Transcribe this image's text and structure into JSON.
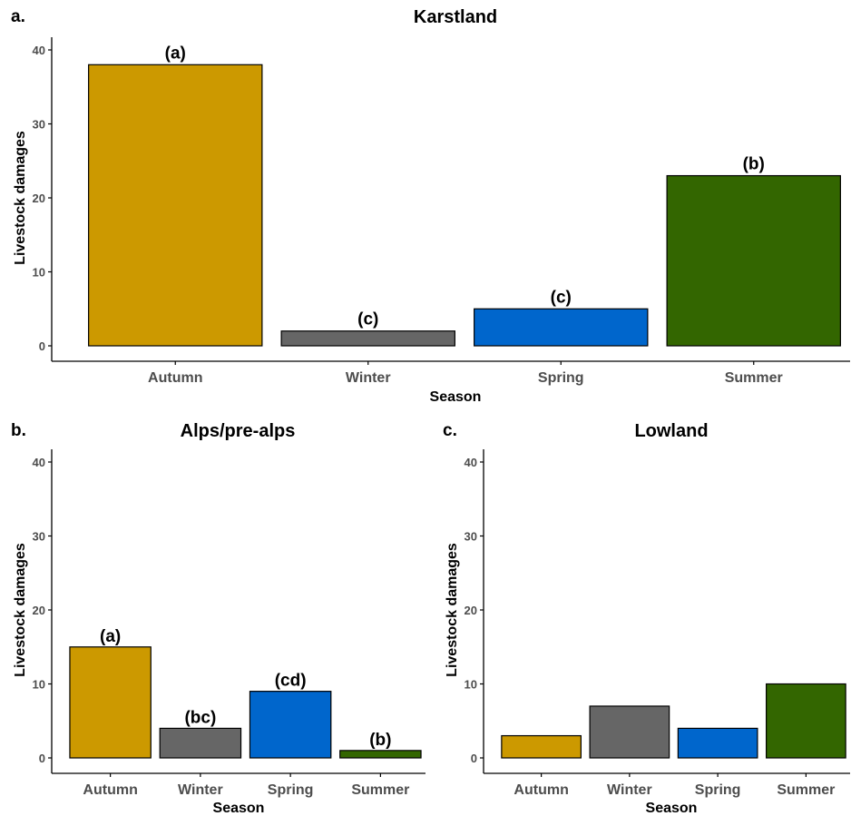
{
  "colors": {
    "Autumn": "#CC9900",
    "Winter": "#666666",
    "Spring": "#0066CC",
    "Summer": "#336600"
  },
  "chart_data": [
    {
      "type": "bar",
      "panel": "a.",
      "title": "Karstland",
      "xlabel": "Season",
      "ylabel": "Livestock damages",
      "categories": [
        "Autumn",
        "Winter",
        "Spring",
        "Summer"
      ],
      "values": [
        38,
        2,
        5,
        23
      ],
      "labels": [
        "(a)",
        "(c)",
        "(c)",
        "(b)"
      ],
      "ylim": [
        0,
        42
      ],
      "yticks": [
        0,
        10,
        20,
        30,
        40
      ],
      "grid": false,
      "legend": "none"
    },
    {
      "type": "bar",
      "panel": "b.",
      "title": "Alps/pre-alps",
      "xlabel": "Season",
      "ylabel": "Livestock damages",
      "categories": [
        "Autumn",
        "Winter",
        "Spring",
        "Summer"
      ],
      "values": [
        15,
        4,
        9,
        1
      ],
      "labels": [
        "(a)",
        "(bc)",
        "(cd)",
        "(b)"
      ],
      "ylim": [
        0,
        42
      ],
      "yticks": [
        0,
        10,
        20,
        30,
        40
      ],
      "grid": false,
      "legend": "none"
    },
    {
      "type": "bar",
      "panel": "c.",
      "title": "Lowland",
      "xlabel": "Season",
      "ylabel": "Livestock damages",
      "categories": [
        "Autumn",
        "Winter",
        "Spring",
        "Summer"
      ],
      "values": [
        3,
        7,
        4,
        10
      ],
      "labels": [],
      "ylim": [
        0,
        42
      ],
      "yticks": [
        0,
        10,
        20,
        30,
        40
      ],
      "grid": false,
      "legend": "none"
    }
  ]
}
